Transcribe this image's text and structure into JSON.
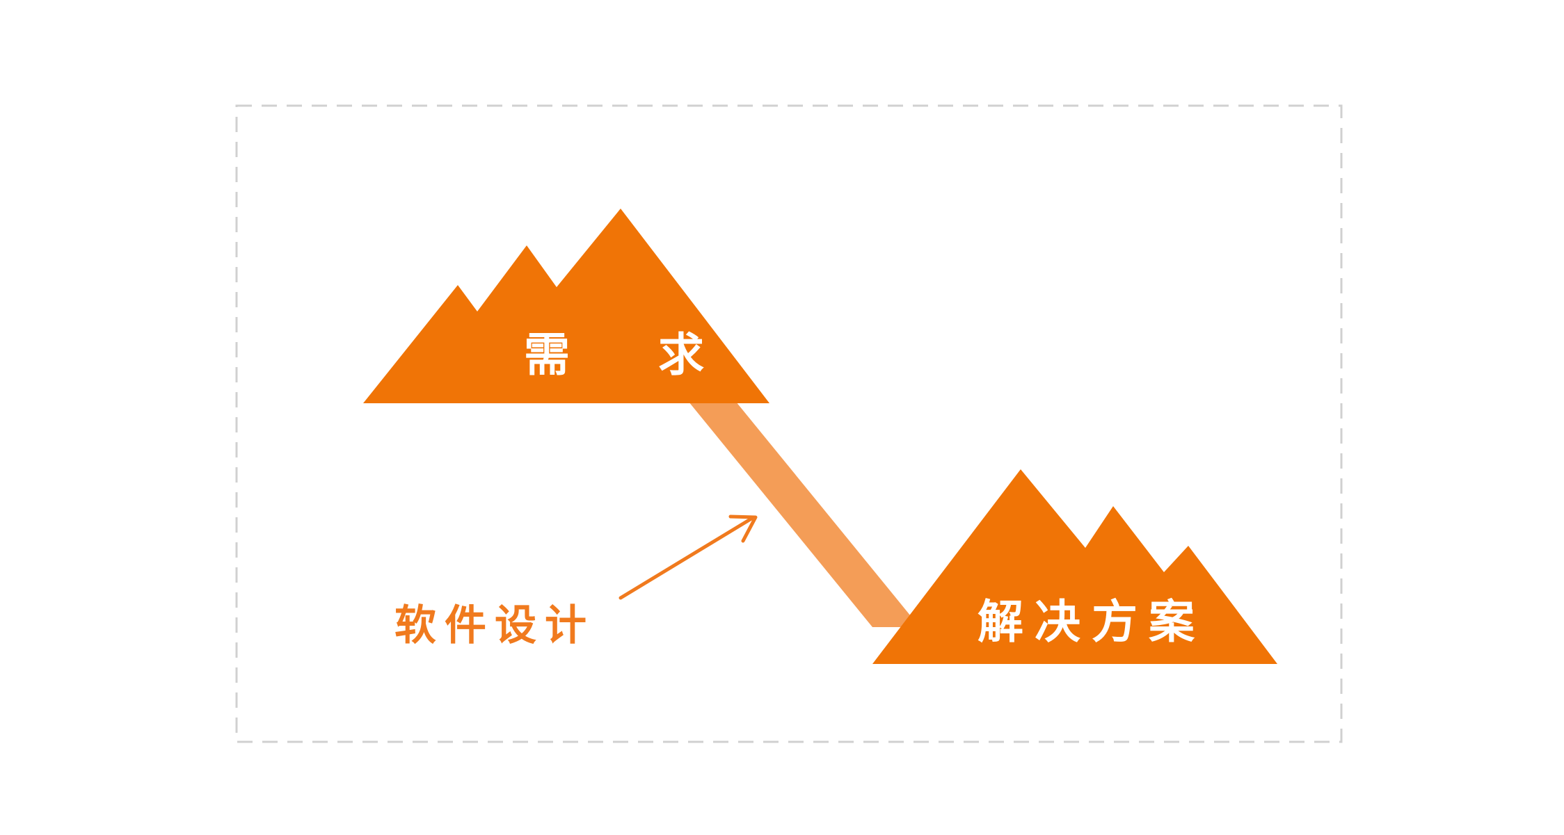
{
  "diagram": {
    "top_mountain_label": "需 求",
    "bottom_mountain_label": "解决方案",
    "arrow_label": "软件设计"
  },
  "colors": {
    "mountain": "#f07406",
    "bridge": "#f49d57",
    "arrow": "#f07a1e",
    "frame_border": "#d0d0d0",
    "label_on_mountain": "#ffffff",
    "background": "#ffffff"
  }
}
